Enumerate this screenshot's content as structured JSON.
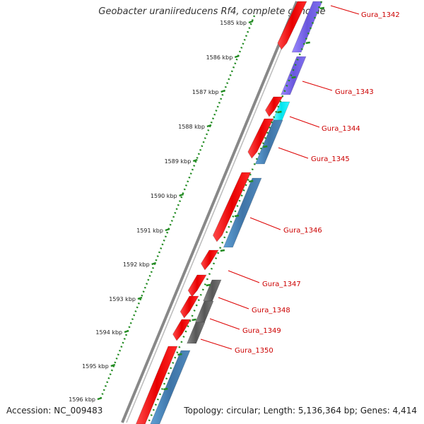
{
  "title": "Geobacter uraniireducens Rf4, complete genome",
  "footer": {
    "accession": "Accession: NC_009483",
    "summary": "Topology: circular; Length: 5,136,364 bp; Genes: 4,414"
  },
  "ruler": {
    "ticks": [
      "1585 kbp",
      "1586 kbp",
      "1587 kbp",
      "1588 kbp",
      "1589 kbp",
      "1590 kbp",
      "1591 kbp",
      "1592 kbp",
      "1593 kbp",
      "1594 kbp",
      "1595 kbp",
      "1596 kbp"
    ]
  },
  "gene_labels": [
    "Gura_1342",
    "Gura_1343",
    "Gura_1344",
    "Gura_1345",
    "Gura_1346",
    "Gura_1347",
    "Gura_1348",
    "Gura_1349",
    "Gura_1350"
  ],
  "colors": {
    "cds": "#ff0000",
    "purple_feature": "#7b68ee",
    "cyan_feature": "#00ffff",
    "blue_feature": "#4682b4",
    "gray_feature": "#666666",
    "ruler_ticks": "#228b22",
    "backbone": "#888888",
    "label": "#cc0000"
  }
}
